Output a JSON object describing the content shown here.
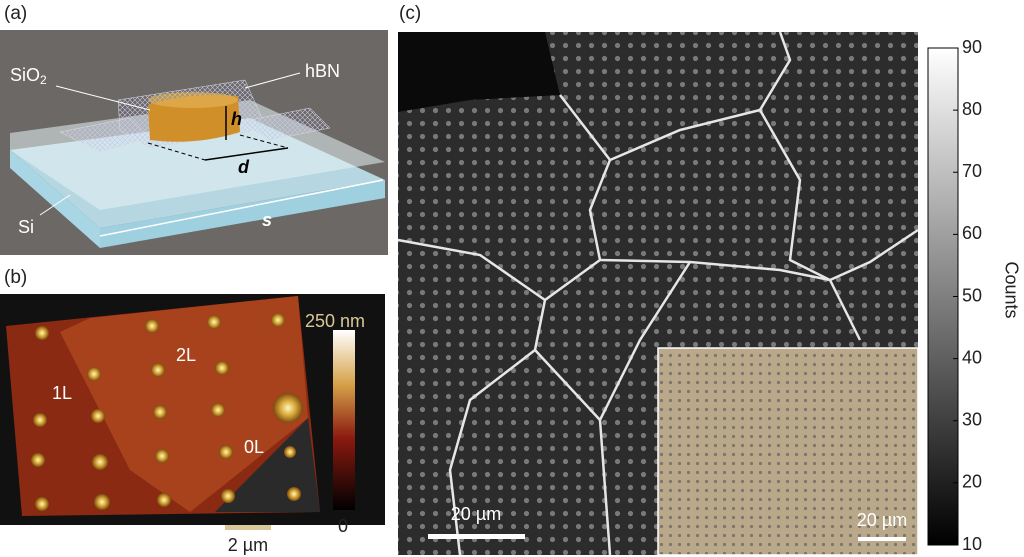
{
  "panel_a": {
    "label": "(a)",
    "sio2": "SiO",
    "sio2_sub": "2",
    "hbn": "hBN",
    "h": "h",
    "d": "d",
    "s": "s",
    "si": "Si"
  },
  "panel_b": {
    "label": "(b)",
    "colorbar_max": "250 nm",
    "colorbar_min": "0",
    "layer_2l": "2L",
    "layer_1l": "1L",
    "layer_0l": "0L",
    "scale_bar": "2 µm"
  },
  "panel_c": {
    "label": "(c)",
    "colorbar": {
      "label": "Counts",
      "lim": [
        10,
        90
      ],
      "ticks": [
        10,
        20,
        30,
        40,
        50,
        60,
        70,
        80,
        90
      ]
    },
    "scale_bar": "20 µm",
    "inset_scale_bar": "20 µm"
  }
}
